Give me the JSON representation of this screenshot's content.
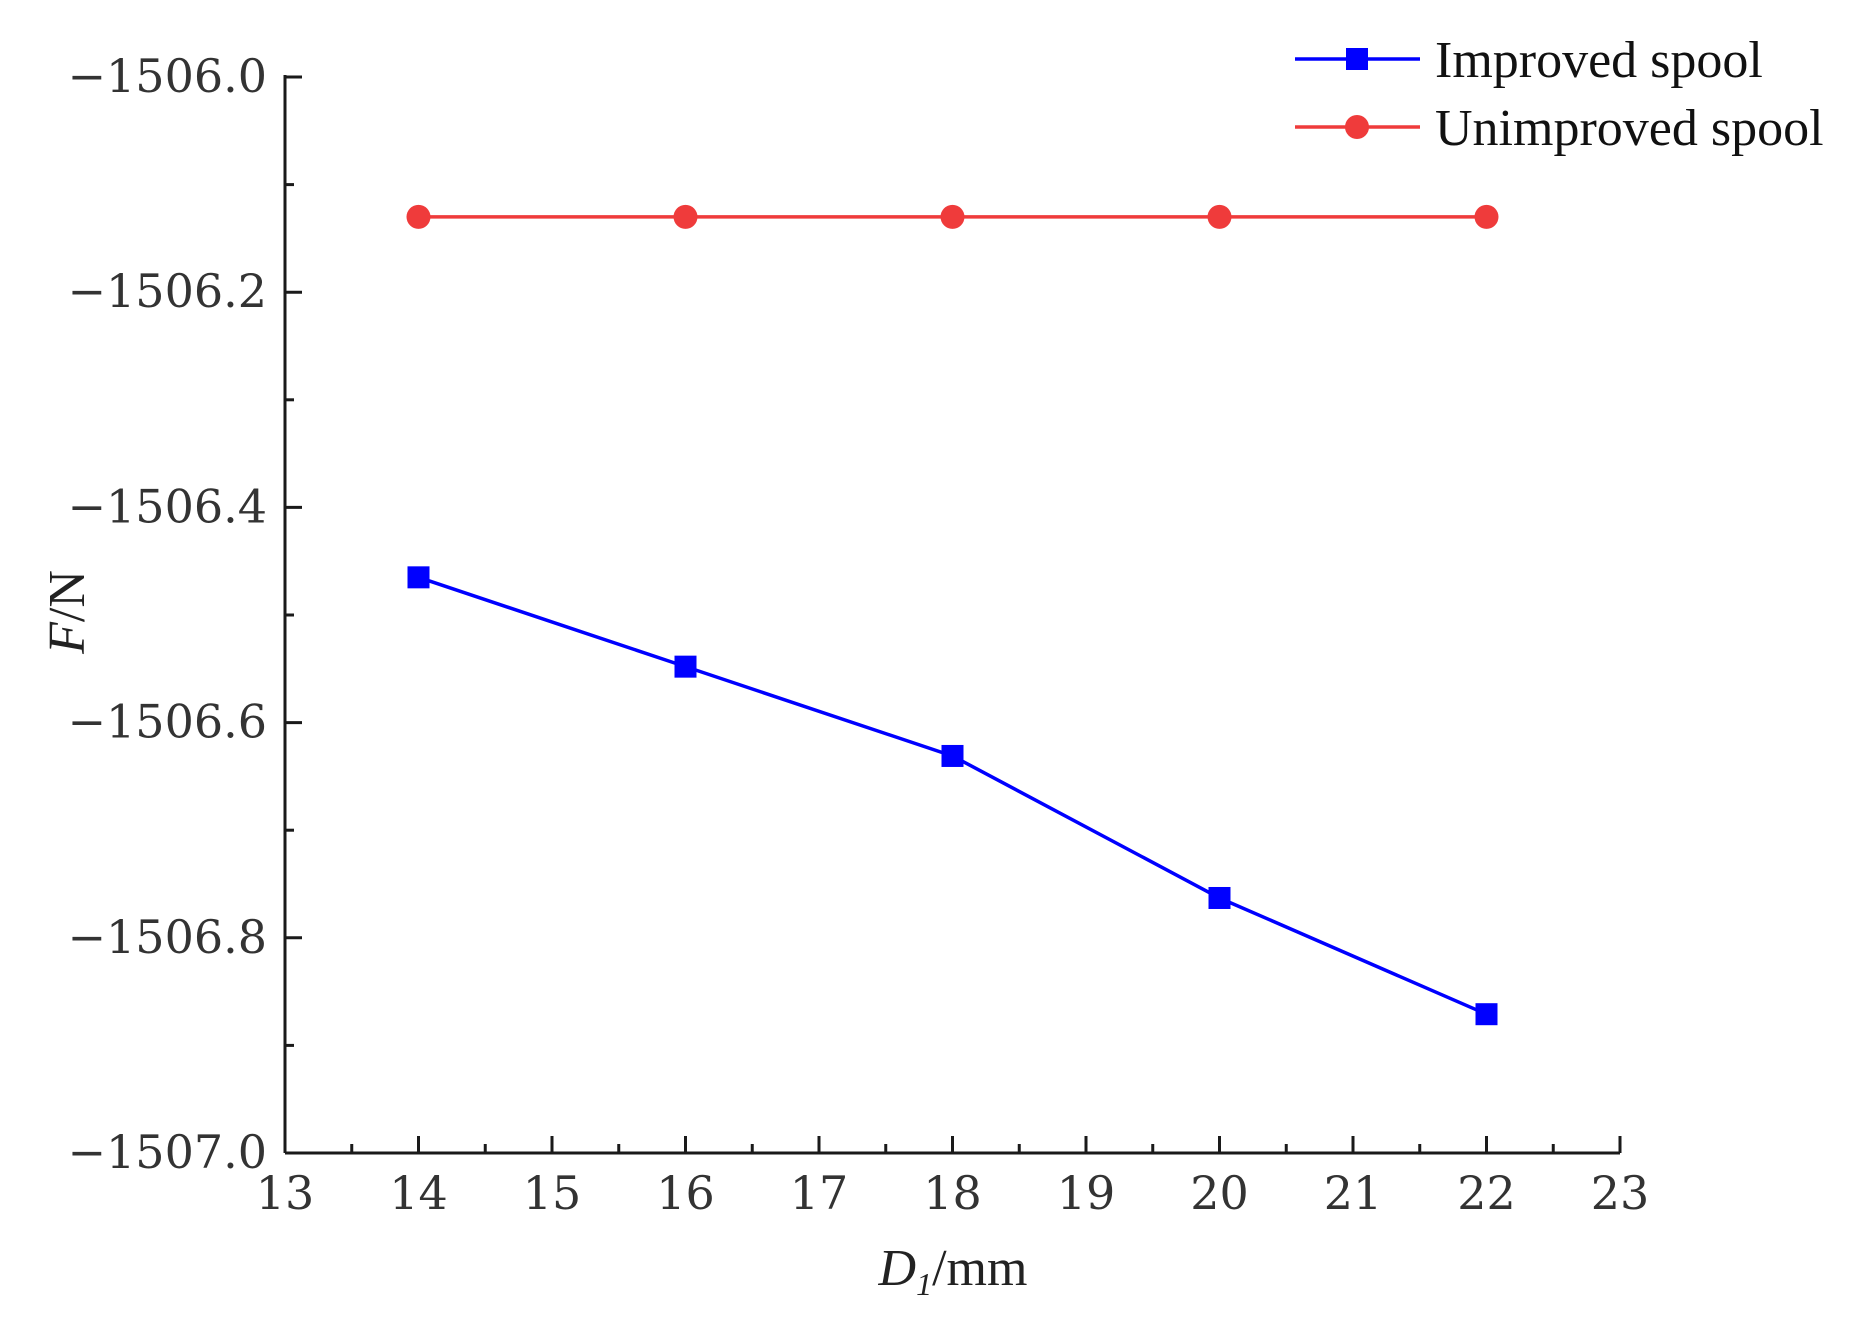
{
  "chart_data": {
    "type": "line",
    "title": "",
    "xlabel_main": "D",
    "xlabel_sub": "1",
    "xlabel_unit": "/mm",
    "ylabel_main": "F",
    "ylabel_unit": "/N",
    "xlim": [
      13,
      23
    ],
    "ylim": [
      -1507.0,
      -1506.0
    ],
    "x_ticks": [
      13,
      14,
      15,
      16,
      17,
      18,
      19,
      20,
      21,
      22,
      23
    ],
    "x_tick_labels": [
      "13",
      "14",
      "15",
      "16",
      "17",
      "18",
      "19",
      "20",
      "21",
      "22",
      "23"
    ],
    "y_ticks": [
      -1506.0,
      -1506.2,
      -1506.4,
      -1506.6,
      -1506.8,
      -1507.0
    ],
    "y_tick_labels": [
      "−1506.0",
      "−1506.2",
      "−1506.4",
      "−1506.6",
      "−1506.8",
      "−1507.0"
    ],
    "legend_position": "top-right",
    "grid": false,
    "series": [
      {
        "name": "Improved spool",
        "color": "#0000ff",
        "marker": "square",
        "x": [
          14,
          16,
          18,
          20,
          22
        ],
        "y": [
          -1506.465,
          -1506.548,
          -1506.631,
          -1506.763,
          -1506.871
        ]
      },
      {
        "name": "Unimproved spool",
        "color": "#ef3b3b",
        "marker": "circle",
        "x": [
          14,
          16,
          18,
          20,
          22
        ],
        "y": [
          -1506.13,
          -1506.13,
          -1506.13,
          -1506.13,
          -1506.13
        ]
      }
    ]
  }
}
